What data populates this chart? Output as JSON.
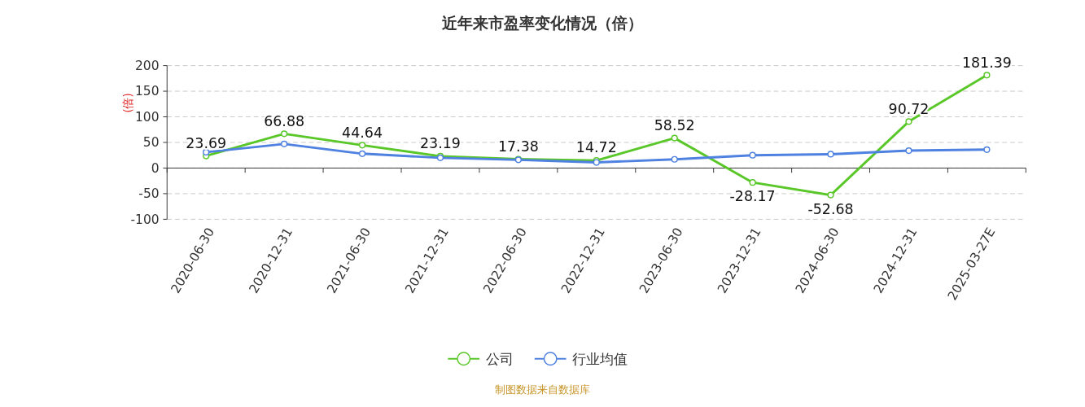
{
  "chart_data": {
    "type": "line",
    "title": "近年来市盈率变化情况（倍）",
    "ylabel": "(倍)",
    "categories": [
      "2020-06-30",
      "2020-12-31",
      "2021-06-30",
      "2021-12-31",
      "2022-06-30",
      "2022-12-31",
      "2023-06-30",
      "2023-12-31",
      "2024-06-30",
      "2024-12-31",
      "2025-03-27E"
    ],
    "series": [
      {
        "name": "公司",
        "color": "#5ac729",
        "values": [
          23.69,
          66.88,
          44.64,
          23.19,
          17.38,
          14.72,
          58.52,
          -28.17,
          -52.68,
          90.72,
          181.39
        ],
        "value_labels": [
          "23.69",
          "66.88",
          "44.64",
          "23.19",
          "17.38",
          "14.72",
          "58.52",
          "-28.17",
          "-52.68",
          "90.72",
          "181.39"
        ]
      },
      {
        "name": "行业均值",
        "color": "#4f81e0",
        "values": [
          31,
          47,
          28,
          20,
          16,
          11,
          17,
          25,
          27,
          34,
          36
        ]
      }
    ],
    "ylim": [
      -100,
      200
    ],
    "yticks": [
      -100,
      -50,
      0,
      50,
      100,
      150,
      200
    ],
    "grid": "y",
    "marker": "circle",
    "legend": "bottom",
    "annotations": [
      "制图数据来自数据库"
    ]
  }
}
